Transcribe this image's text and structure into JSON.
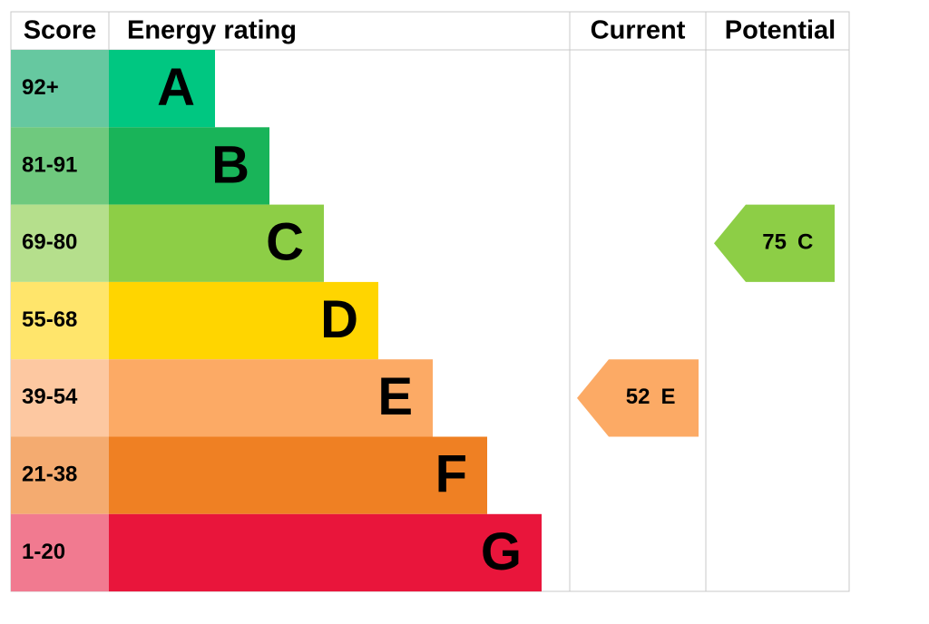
{
  "header": {
    "score": "Score",
    "rating": "Energy rating",
    "current": "Current",
    "potential": "Potential"
  },
  "bands": [
    {
      "score": "92+",
      "letter": "A",
      "color": "#00c781",
      "score_color": "#66c8a0"
    },
    {
      "score": "81-91",
      "letter": "B",
      "color": "#19b459",
      "score_color": "#6fc97e"
    },
    {
      "score": "69-80",
      "letter": "C",
      "color": "#8dce46",
      "score_color": "#b5df8c"
    },
    {
      "score": "55-68",
      "letter": "D",
      "color": "#ffd500",
      "score_color": "#ffe56b"
    },
    {
      "score": "39-54",
      "letter": "E",
      "color": "#fcaa65",
      "score_color": "#fdc8a1"
    },
    {
      "score": "21-38",
      "letter": "F",
      "color": "#ef8023",
      "score_color": "#f4ab70"
    },
    {
      "score": "1-20",
      "letter": "G",
      "color": "#e9153b",
      "score_color": "#f17a90"
    }
  ],
  "current": {
    "value": 52,
    "letter": "E"
  },
  "potential": {
    "value": 75,
    "letter": "C"
  }
}
